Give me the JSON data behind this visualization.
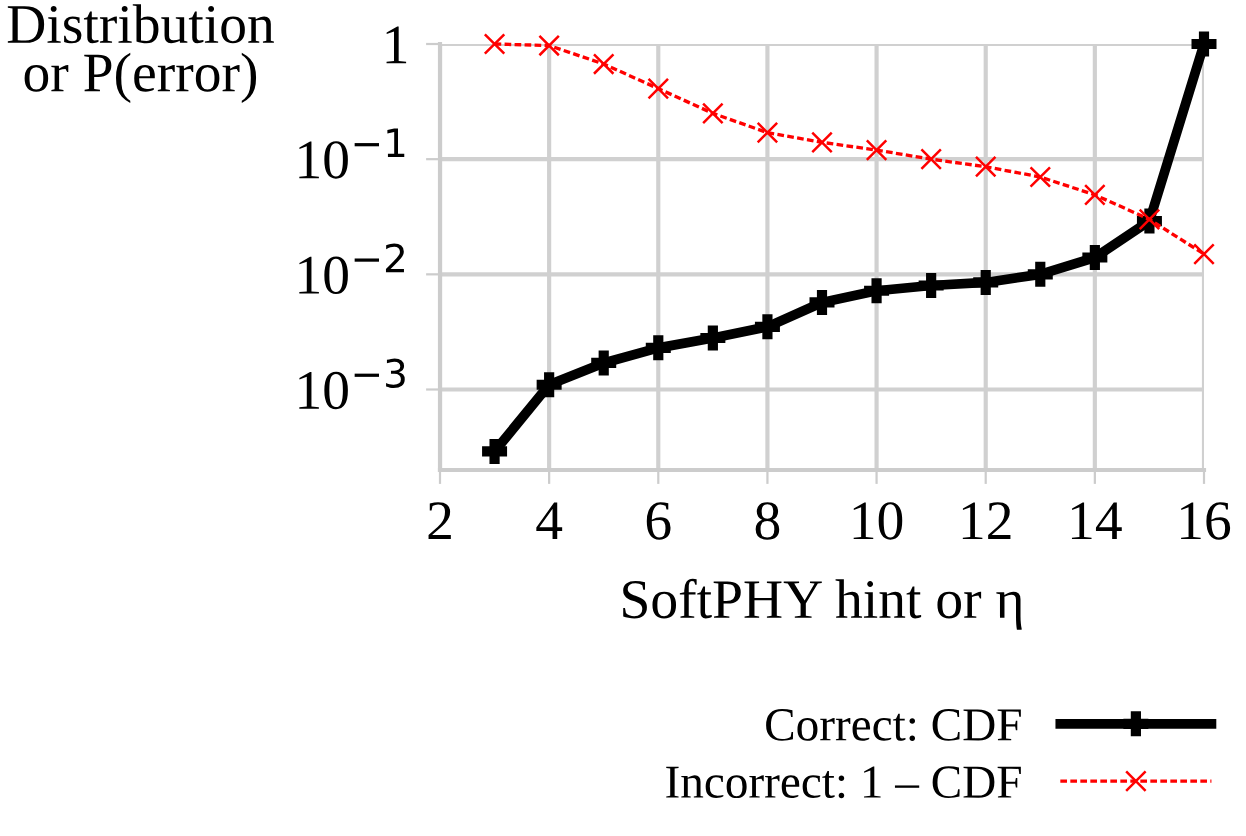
{
  "chart_data": {
    "type": "line",
    "xlabel": "SoftPHY hint or η",
    "ylabel": "Distribution\nor P(error)",
    "x": [
      3,
      4,
      5,
      6,
      7,
      8,
      9,
      10,
      11,
      12,
      13,
      14,
      15,
      16
    ],
    "series": [
      {
        "name": "Correct: CDF",
        "color": "#000000",
        "marker": "plus",
        "line_style": "solid",
        "values": [
          0.00029,
          0.0011,
          0.0017,
          0.0023,
          0.0028,
          0.0035,
          0.0057,
          0.0072,
          0.008,
          0.0085,
          0.01,
          0.014,
          0.029,
          1
        ]
      },
      {
        "name": "Incorrect: 1 – CDF",
        "color": "#ff0000",
        "marker": "cross",
        "line_style": "dotted",
        "values": [
          1,
          0.97,
          0.67,
          0.41,
          0.25,
          0.17,
          0.14,
          0.12,
          0.1,
          0.086,
          0.07,
          0.049,
          0.03,
          0.015
        ]
      }
    ],
    "log": "y",
    "xlim": [
      2,
      16
    ],
    "xticks": [
      2,
      4,
      6,
      8,
      10,
      12,
      14,
      16
    ],
    "ylim": [
      0.0002,
      1
    ],
    "yticks": [
      {
        "value": 0.001,
        "label": "10$^{−3}$"
      },
      {
        "value": 0.01,
        "label": "10$^{−2}$"
      },
      {
        "value": 0.1,
        "label": "10$^{−1}$"
      },
      1
    ],
    "grid": true,
    "legend": "bottom"
  }
}
